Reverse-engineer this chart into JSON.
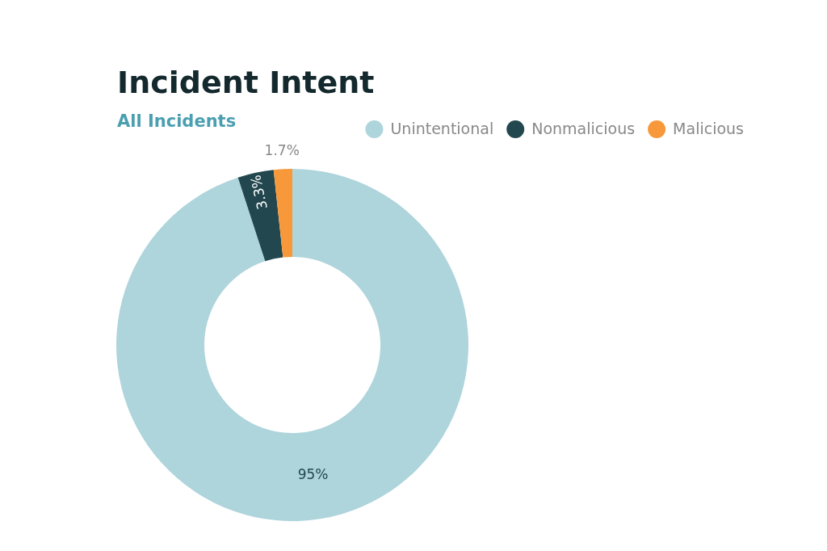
{
  "chart_data": {
    "type": "donut",
    "title": "Incident Intent",
    "subtitle": "All Incidents",
    "categories": [
      "Unintentional",
      "Nonmalicious",
      "Malicious"
    ],
    "values": [
      95,
      3.3,
      1.7
    ],
    "colors": [
      "#aed4dc",
      "#23474f",
      "#f7993a"
    ],
    "value_labels": [
      "95%",
      "3.3%",
      "1.7%"
    ],
    "legend": "top right"
  }
}
